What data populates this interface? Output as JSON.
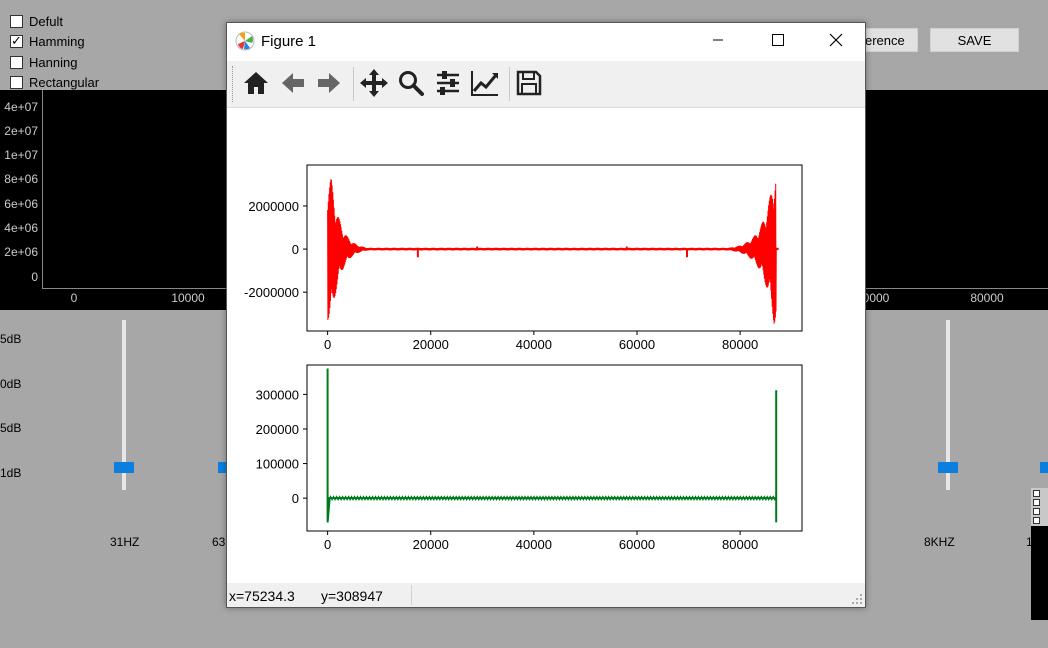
{
  "background_app": {
    "window_options": [
      {
        "label": "Defult",
        "checked": false
      },
      {
        "label": "Hamming",
        "checked": true
      },
      {
        "label": "Hanning",
        "checked": false
      },
      {
        "label": "Rectangular",
        "checked": false
      }
    ],
    "buttons": {
      "difference_partial": "erence",
      "save": "SAVE"
    },
    "spectrum_plot": {
      "y_ticks": [
        "4e+07",
        "2e+07",
        "1e+07",
        "8e+06",
        "6e+06",
        "4e+06",
        "2e+06",
        "0"
      ],
      "x_ticks_left": [
        "0",
        "10000"
      ],
      "x_ticks_right": [
        "0000",
        "80000"
      ]
    },
    "db_labels": [
      "5dB",
      "0dB",
      "5dB",
      "1dB"
    ],
    "freq_labels": {
      "first": "31HZ",
      "second_partial": "63",
      "last": "8KHZ",
      "right_edge_partial": "1"
    }
  },
  "figure": {
    "title": "Figure 1",
    "toolbar": {
      "home": "home-icon",
      "back": "back-arrow-icon",
      "forward": "forward-arrow-icon",
      "pan": "pan-icon",
      "zoom": "zoom-icon",
      "configure": "configure-subplots-icon",
      "edit": "edit-curve-icon",
      "save": "save-icon"
    },
    "status": {
      "x": "x=75234.3",
      "y": "y=308947"
    }
  },
  "chart_data": [
    {
      "type": "line",
      "title": "",
      "xlabel": "",
      "ylabel": "",
      "xlim": [
        -4000,
        92000
      ],
      "ylim": [
        -3800000,
        3900000
      ],
      "x_ticks": [
        "0",
        "20000",
        "40000",
        "60000",
        "80000"
      ],
      "y_ticks": [
        "2000000",
        "0",
        "-2000000"
      ],
      "series": [
        {
          "color": "#ff0000",
          "description_points": [
            [
              0,
              0
            ],
            [
              700,
              3300000
            ],
            [
              1500,
              -3500000
            ],
            [
              5000,
              1000000
            ],
            [
              10000,
              300000
            ],
            [
              17500,
              -300000
            ],
            [
              30000,
              100000
            ],
            [
              43500,
              0
            ],
            [
              58000,
              100000
            ],
            [
              70000,
              -300000
            ],
            [
              78000,
              300000
            ],
            [
              84000,
              1500000
            ],
            [
              86500,
              3600000
            ],
            [
              87000,
              -3200000
            ],
            [
              87500,
              0
            ]
          ]
        }
      ],
      "grid": false
    },
    {
      "type": "line",
      "title": "",
      "xlabel": "",
      "ylabel": "",
      "xlim": [
        -4000,
        92000
      ],
      "ylim": [
        -95000,
        385000
      ],
      "x_ticks": [
        "0",
        "20000",
        "40000",
        "60000",
        "80000"
      ],
      "y_ticks": [
        "300000",
        "200000",
        "100000",
        "0"
      ],
      "series": [
        {
          "color": "#007a1f",
          "description_points": [
            [
              0,
              375000
            ],
            [
              0,
              -70000
            ],
            [
              400,
              0
            ],
            [
              43500,
              0
            ],
            [
              87000,
              0
            ],
            [
              87000,
              312000
            ],
            [
              87000,
              -70000
            ]
          ]
        }
      ],
      "grid": false
    }
  ]
}
